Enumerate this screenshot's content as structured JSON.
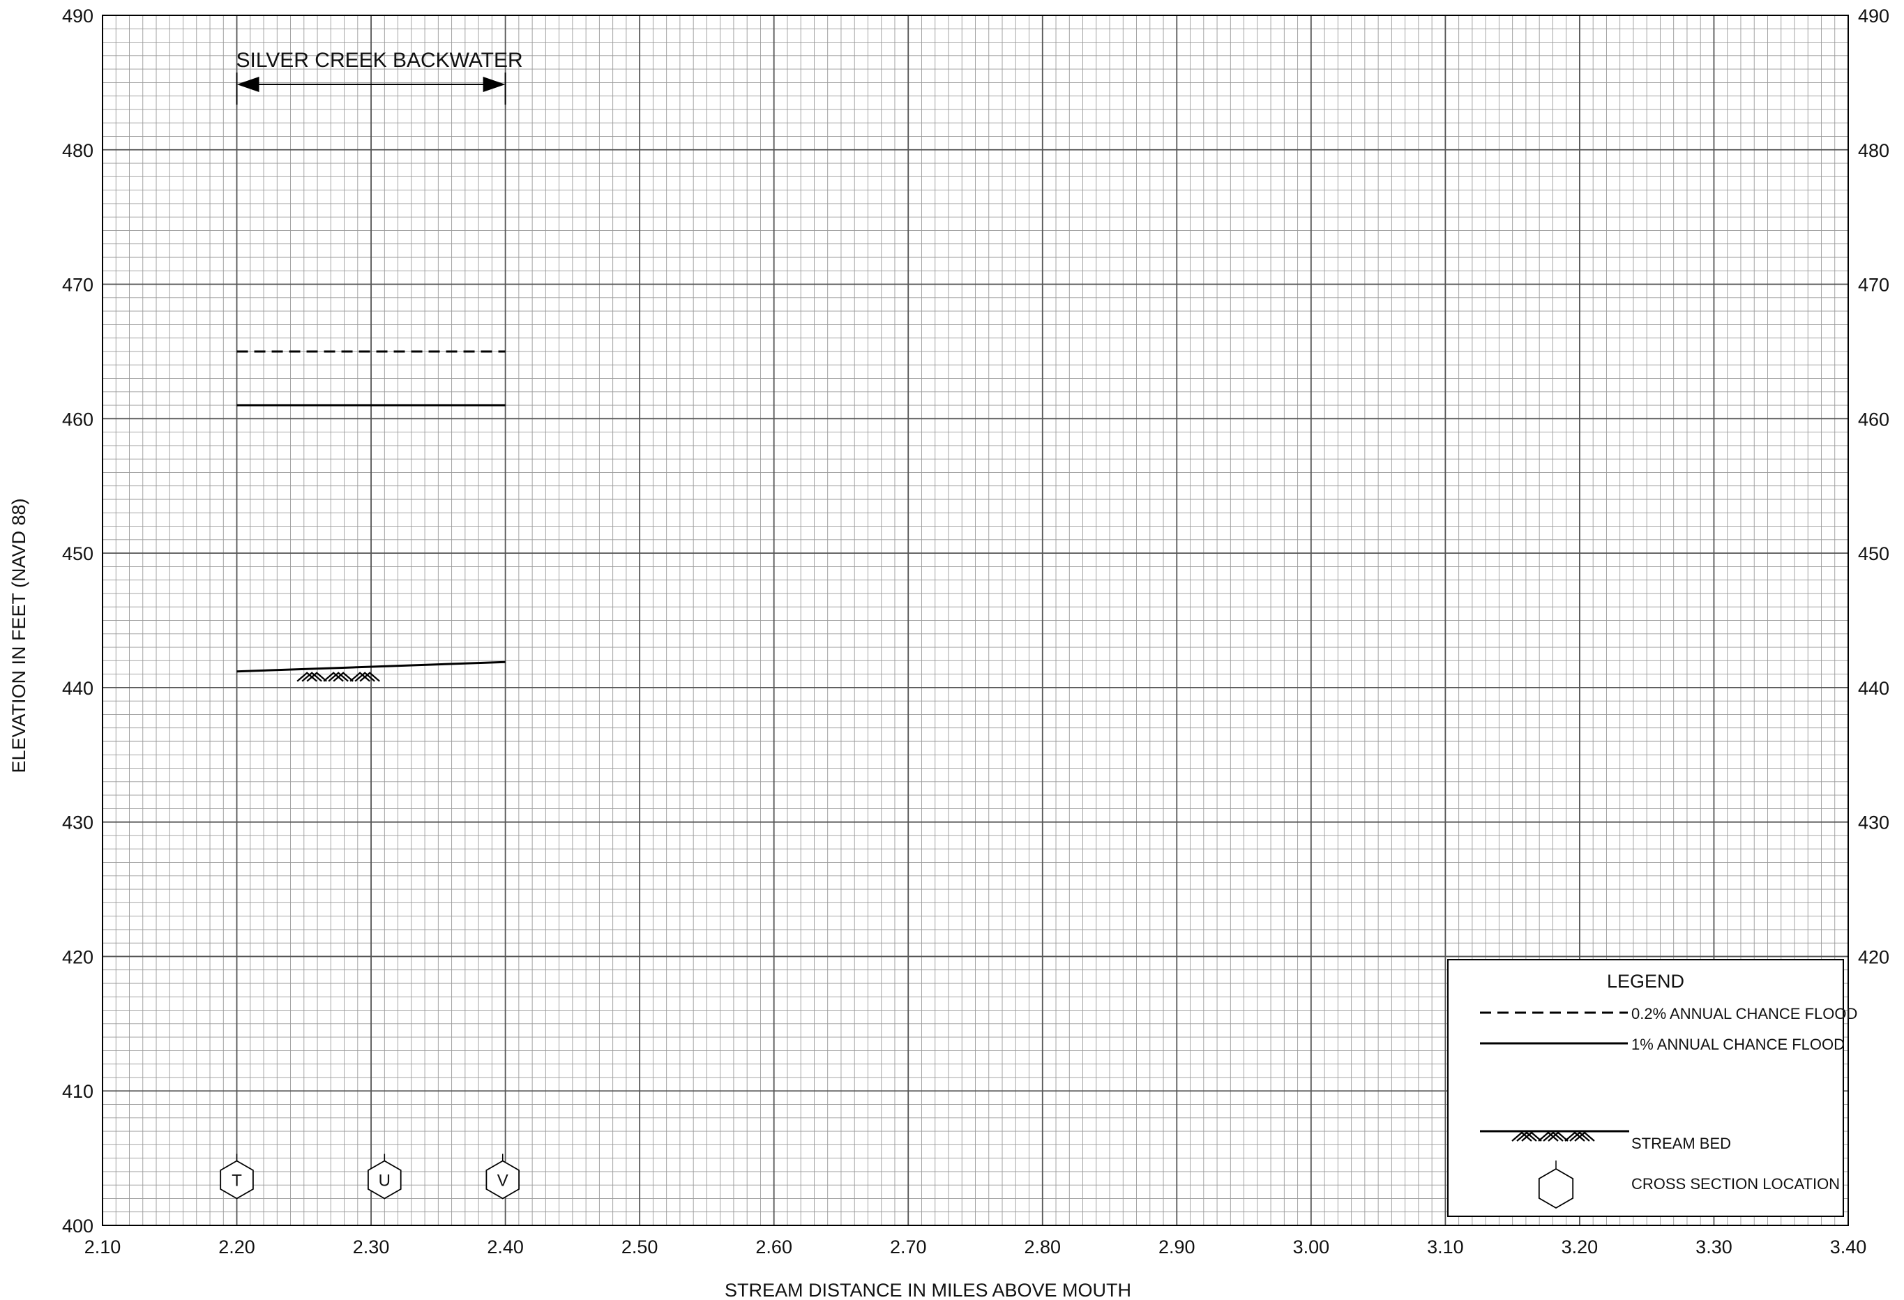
{
  "chart_data": {
    "type": "line",
    "xlabel": "STREAM DISTANCE IN MILES ABOVE MOUTH",
    "ylabel": "ELEVATION IN FEET (NAVD 88)",
    "xlim": [
      2.1,
      3.4
    ],
    "ylim": [
      400,
      490
    ],
    "x_ticks": [
      "2.10",
      "2.20",
      "2.30",
      "2.40",
      "2.50",
      "2.60",
      "2.70",
      "2.80",
      "2.90",
      "3.00",
      "3.10",
      "3.20",
      "3.30",
      "3.40"
    ],
    "y_ticks": [
      "400",
      "410",
      "420",
      "430",
      "440",
      "450",
      "460",
      "470",
      "480",
      "490"
    ],
    "y_ticks_right": [
      "420",
      "430",
      "440",
      "450",
      "460",
      "470",
      "480",
      "490"
    ],
    "grid": true,
    "series": [
      {
        "name": "0.2% ANNUAL CHANCE FLOOD",
        "style": "dashed",
        "x": [
          2.2,
          2.4
        ],
        "y": [
          465.0,
          465.0
        ]
      },
      {
        "name": "1% ANNUAL CHANCE FLOOD",
        "style": "solid",
        "x": [
          2.2,
          2.4
        ],
        "y": [
          461.0,
          461.0
        ]
      },
      {
        "name": "STREAM BED",
        "style": "bed",
        "x": [
          2.2,
          2.4
        ],
        "y": [
          441.2,
          441.9
        ]
      }
    ],
    "cross_sections": [
      {
        "label": "T",
        "x": 2.2
      },
      {
        "label": "U",
        "x": 2.31
      },
      {
        "label": "V",
        "x": 2.398
      }
    ],
    "annotations": [
      {
        "text": "SILVER CREEK BACKWATER",
        "x_start": 2.2,
        "x_end": 2.4
      }
    ],
    "legend": {
      "title": "LEGEND",
      "placement": "bottom-right",
      "items": [
        {
          "label": "0.2% ANNUAL CHANCE FLOOD",
          "symbol": "dashed"
        },
        {
          "label": "1% ANNUAL CHANCE FLOOD",
          "symbol": "solid"
        },
        {
          "label": "STREAM BED",
          "symbol": "bed"
        },
        {
          "label": "CROSS SECTION LOCATION",
          "symbol": "hexagon"
        }
      ]
    },
    "colors": {
      "major_grid": "#555555",
      "minor_grid": "#9a9a9a",
      "line": "#000000"
    }
  }
}
